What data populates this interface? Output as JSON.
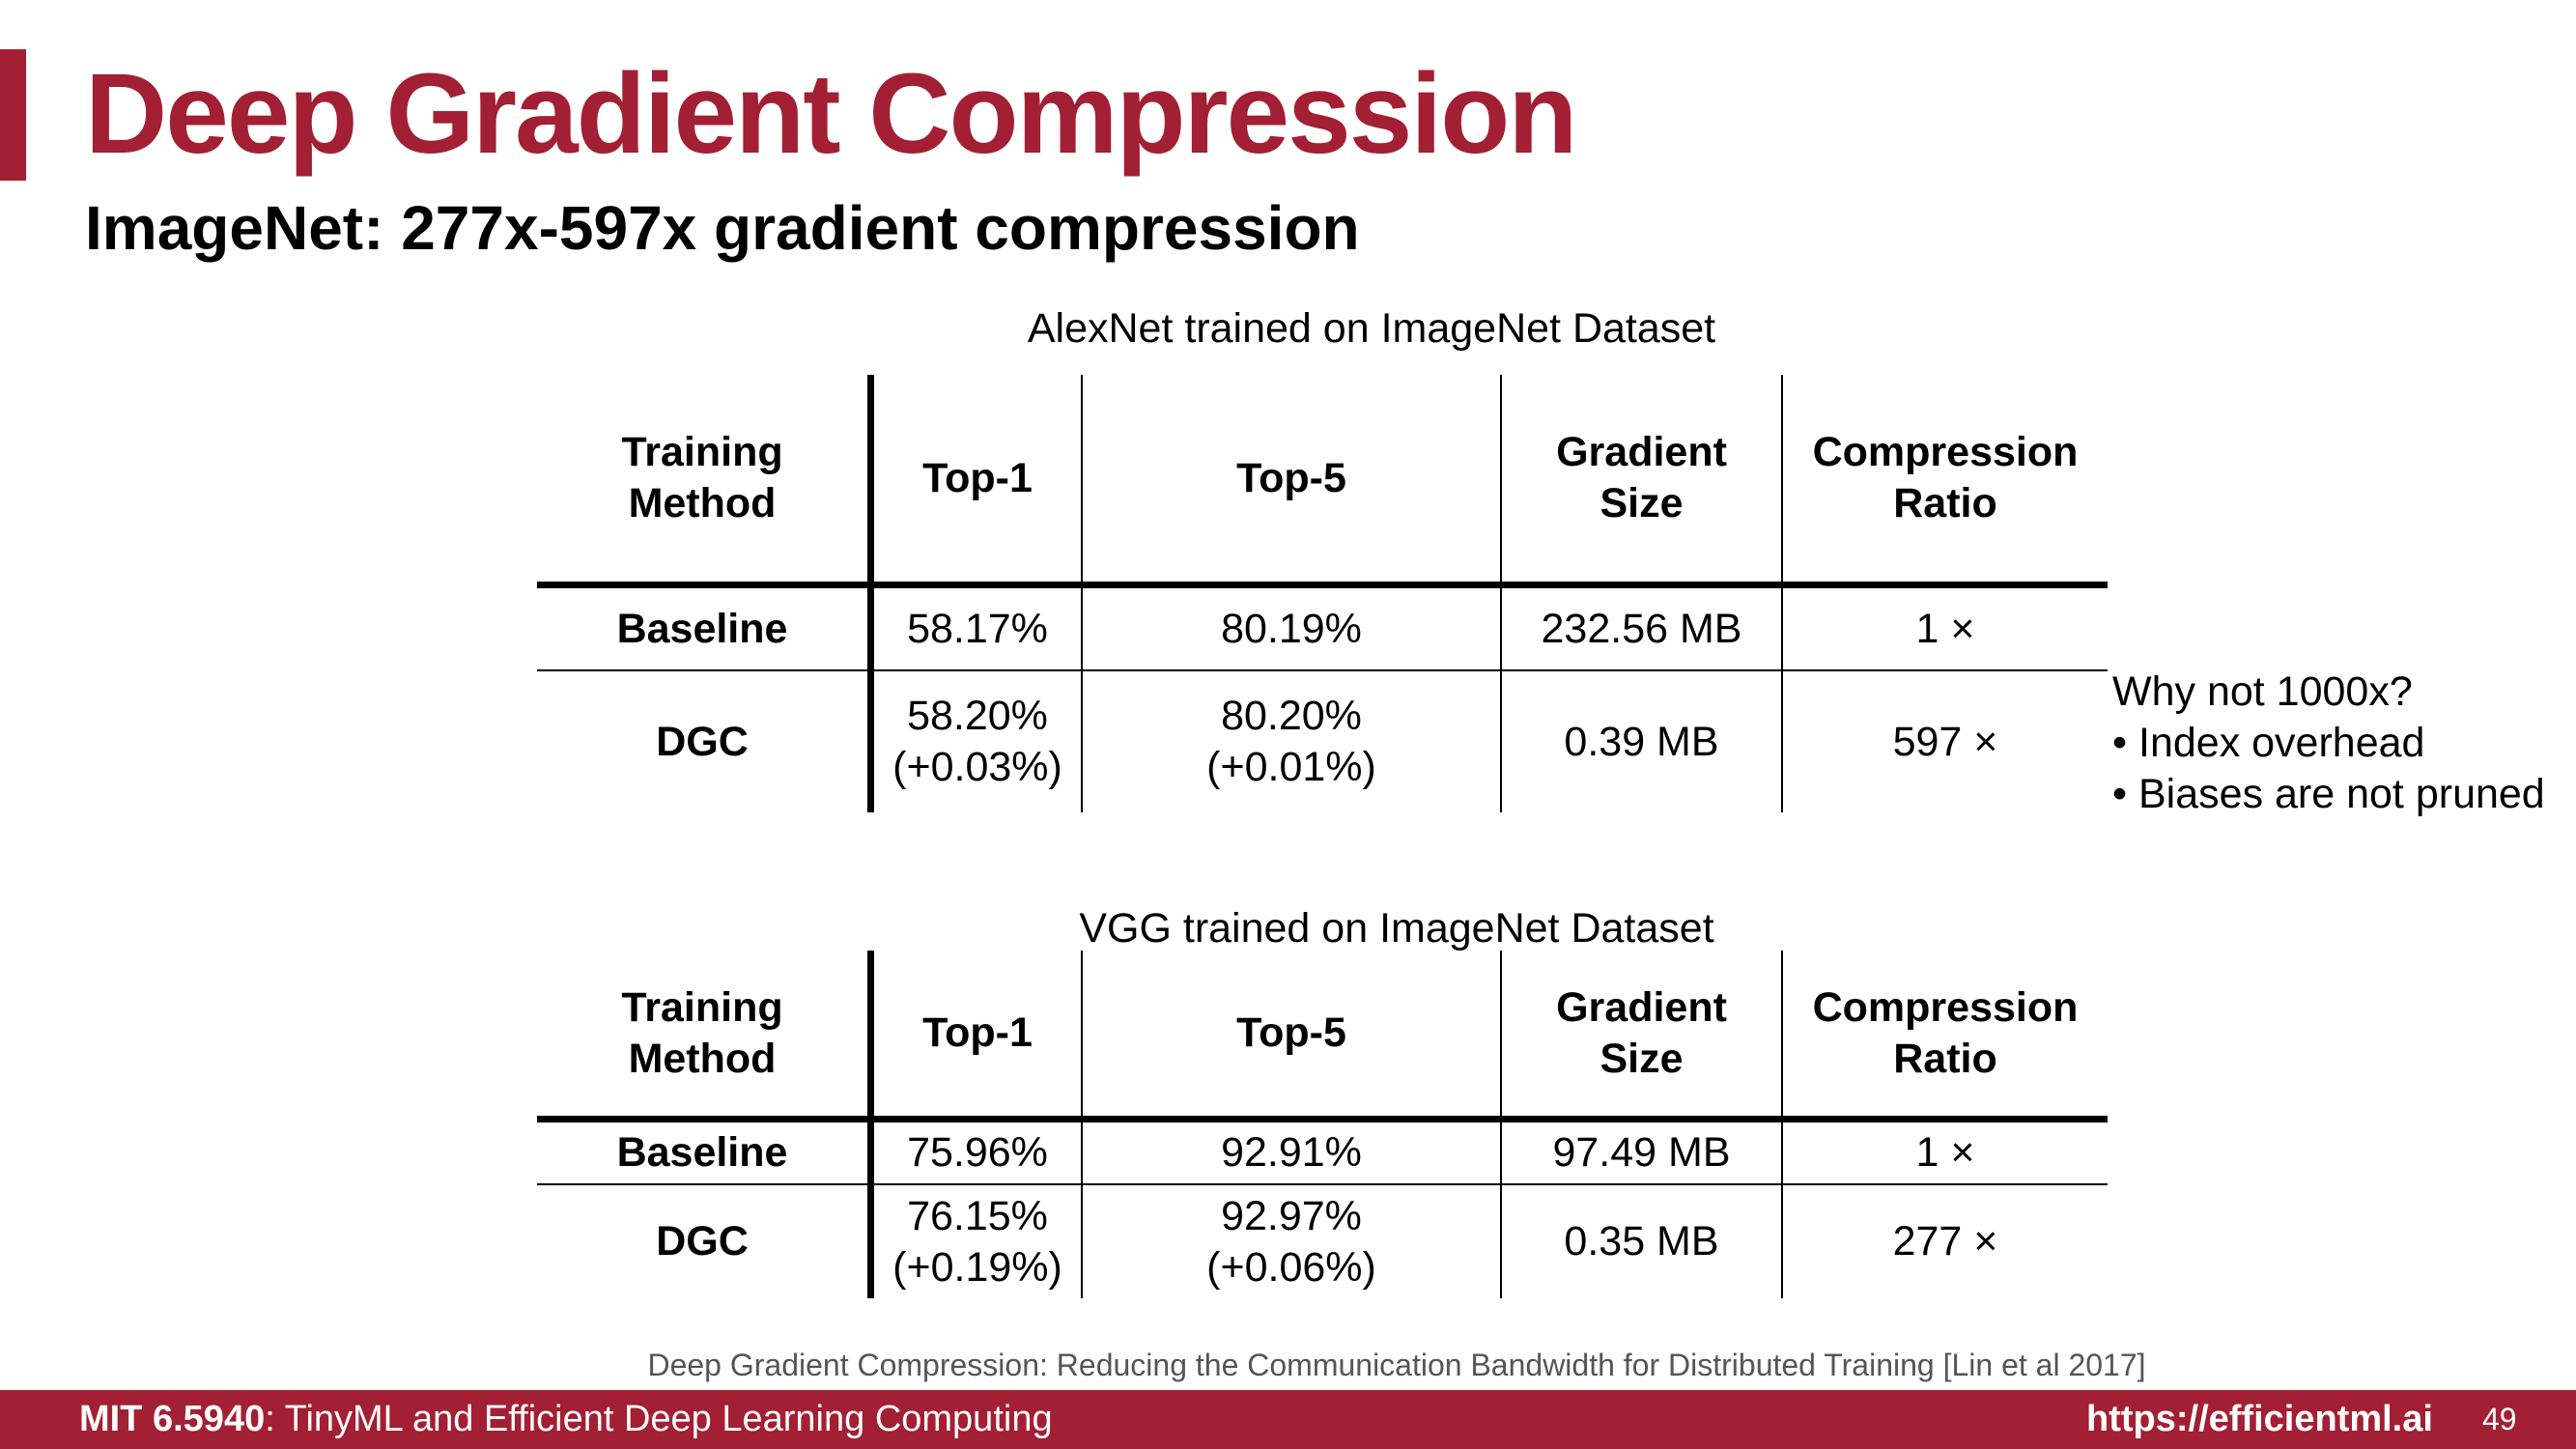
{
  "slide": {
    "title": "Deep Gradient Compression",
    "subtitle": "ImageNet: 277x-597x gradient compression",
    "accent_color": "#a31f34"
  },
  "tables": [
    {
      "caption": "AlexNet trained on ImageNet Dataset",
      "headers": [
        "Training\nMethod",
        "Top-1",
        "Top-5",
        "Gradient\nSize",
        "Compression\nRatio"
      ],
      "rows": [
        {
          "method": "Baseline",
          "top1": "58.17%",
          "top1_delta": "",
          "top5": "80.19%",
          "top5_delta": "",
          "gradient_size": "232.56 MB",
          "compression_ratio": "1 ×"
        },
        {
          "method": "DGC",
          "top1": "58.20%",
          "top1_delta": "(+0.03%)",
          "top5": "80.20%",
          "top5_delta": "(+0.01%)",
          "gradient_size": "0.39 MB",
          "compression_ratio": "597 ×"
        }
      ]
    },
    {
      "caption": "VGG trained on ImageNet Dataset",
      "headers": [
        "Training\nMethod",
        "Top-1",
        "Top-5",
        "Gradient\nSize",
        "Compression\nRatio"
      ],
      "rows": [
        {
          "method": "Baseline",
          "top1": "75.96%",
          "top1_delta": "",
          "top5": "92.91%",
          "top5_delta": "",
          "gradient_size": "97.49 MB",
          "compression_ratio": "1 ×"
        },
        {
          "method": "DGC",
          "top1": "76.15%",
          "top1_delta": "(+0.19%)",
          "top5": "92.97%",
          "top5_delta": "(+0.06%)",
          "gradient_size": "0.35 MB",
          "compression_ratio": "277 ×"
        }
      ]
    }
  ],
  "note": {
    "heading": "Why not 1000x?",
    "bullets": [
      "• Index overhead",
      "• Biases are not pruned"
    ]
  },
  "citation": "Deep Gradient Compression: Reducing the Communication Bandwidth for Distributed Training [Lin et al 2017]",
  "footer": {
    "course_code": "MIT 6.5940",
    "course_name": ": TinyML and Efficient Deep Learning Computing",
    "url": "https://efficientml.ai",
    "page_number": "49"
  }
}
